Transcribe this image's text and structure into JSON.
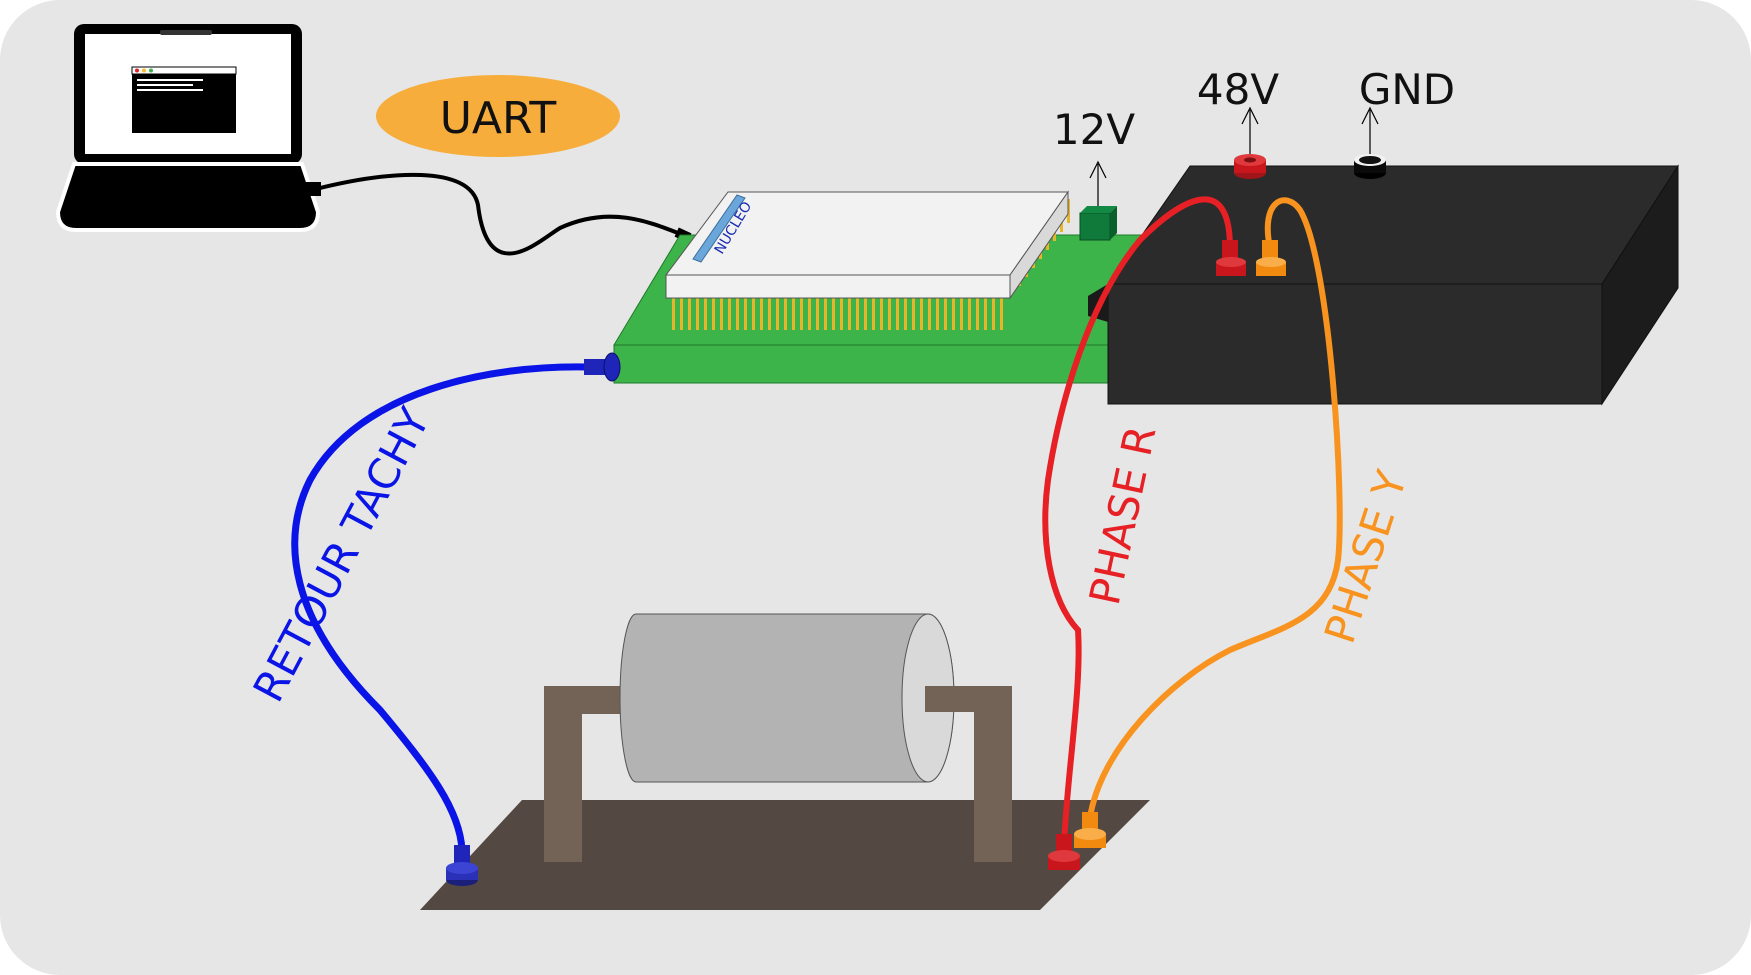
{
  "labels": {
    "uart": "UART",
    "nucleo": "NUCLEO",
    "v12": "12V",
    "v48": "48V",
    "gnd": "GND",
    "retour_tachy": "RETOUR  TACHY",
    "phase_r": "PHASE R",
    "phase_y": "PHASE  Y"
  },
  "colors": {
    "background": "#e6e6e6",
    "uart_badge": "#f7ad3c",
    "pcb": "#3cb44a",
    "nucleo_board": "#f2f2f2",
    "power_box": "#2b2b2b",
    "base_plate": "#544842",
    "motor": "#b3b3b3",
    "bracket": "#736357",
    "wire_uart": "#000000",
    "wire_tachy": "#0a14e6",
    "wire_phase_r": "#e62024",
    "wire_phase_y": "#f7931e"
  }
}
